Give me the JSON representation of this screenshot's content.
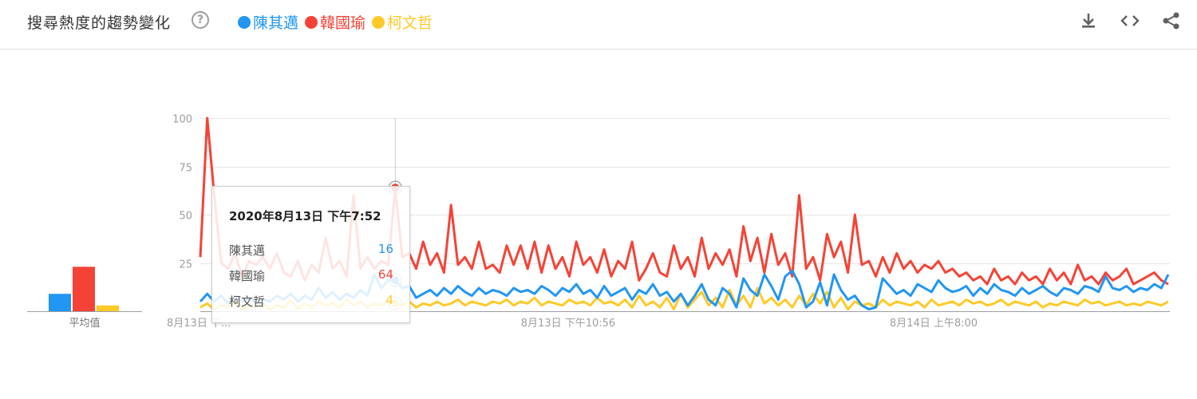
{
  "header": {
    "title": "搜尋熱度的趨勢變化",
    "help_glyph": "?",
    "tools": [
      "download-icon",
      "embed-icon",
      "share-icon"
    ]
  },
  "colors": {
    "blue": "#2196f3",
    "red": "#f44336",
    "yellow": "#ffca28"
  },
  "tooltip": {
    "date": "2020年8月13日 下午7:52",
    "rows": [
      {
        "label": "陳其邁",
        "value": "16",
        "color": "#2196f3"
      },
      {
        "label": "韓國瑜",
        "value": "64",
        "color": "#f44336"
      },
      {
        "label": "柯文哲",
        "value": "4",
        "color": "#ffca28"
      }
    ]
  },
  "chart_data": {
    "type": "line",
    "ylim": [
      0,
      100
    ],
    "yticks": [
      100,
      75,
      50,
      25
    ],
    "xtick_labels": [
      "8月13日 下...",
      "8月13日 下午10:56",
      "8月14日 上午8:00"
    ],
    "grid": true,
    "legend_position": "top",
    "hover_index": 28,
    "averages": {
      "label": "平均值",
      "values": [
        {
          "name": "陳其邁",
          "value": 9,
          "color": "#2196f3"
        },
        {
          "name": "韓國瑜",
          "value": 23,
          "color": "#f44336"
        },
        {
          "name": "柯文哲",
          "value": 3,
          "color": "#ffca28"
        }
      ]
    },
    "series": [
      {
        "name": "陳其邁",
        "color": "#2196f3",
        "values": [
          5,
          9,
          5,
          8,
          4,
          8,
          5,
          7,
          4,
          6,
          5,
          8,
          6,
          9,
          5,
          8,
          6,
          12,
          7,
          10,
          6,
          9,
          7,
          11,
          8,
          19,
          12,
          16,
          16,
          12,
          13,
          7,
          9,
          11,
          8,
          12,
          9,
          13,
          10,
          8,
          12,
          9,
          11,
          10,
          8,
          12,
          10,
          11,
          9,
          13,
          11,
          8,
          12,
          10,
          14,
          9,
          11,
          7,
          13,
          8,
          10,
          12,
          6,
          11,
          9,
          14,
          8,
          10,
          5,
          9,
          3,
          8,
          14,
          6,
          3,
          12,
          9,
          2,
          17,
          11,
          8,
          19,
          13,
          6,
          18,
          21,
          14,
          2,
          5,
          15,
          3,
          19,
          11,
          6,
          8,
          3,
          1,
          2,
          17,
          13,
          9,
          11,
          8,
          14,
          12,
          10,
          16,
          12,
          10,
          11,
          13,
          8,
          12,
          9,
          14,
          11,
          10,
          8,
          12,
          9,
          11,
          13,
          10,
          8,
          12,
          11,
          9,
          13,
          12,
          10,
          18,
          12,
          11,
          13,
          10,
          12,
          11,
          14,
          12,
          19
        ]
      },
      {
        "name": "韓國瑜",
        "color": "#f44336",
        "values": [
          28,
          100,
          60,
          25,
          22,
          30,
          18,
          26,
          24,
          28,
          22,
          30,
          20,
          18,
          26,
          16,
          24,
          20,
          38,
          22,
          26,
          18,
          60,
          22,
          28,
          22,
          26,
          24,
          64,
          28,
          30,
          22,
          36,
          24,
          30,
          20,
          55,
          24,
          28,
          22,
          36,
          22,
          24,
          20,
          34,
          24,
          34,
          22,
          36,
          20,
          34,
          22,
          28,
          18,
          36,
          24,
          28,
          20,
          32,
          18,
          26,
          22,
          36,
          16,
          22,
          30,
          20,
          18,
          34,
          22,
          28,
          18,
          38,
          22,
          30,
          24,
          32,
          18,
          44,
          26,
          38,
          20,
          40,
          24,
          30,
          18,
          60,
          22,
          28,
          16,
          40,
          28,
          36,
          20,
          50,
          24,
          26,
          18,
          28,
          20,
          30,
          22,
          26,
          20,
          24,
          22,
          26,
          20,
          22,
          18,
          20,
          16,
          18,
          14,
          22,
          16,
          18,
          14,
          20,
          16,
          18,
          14,
          22,
          16,
          20,
          14,
          24,
          16,
          18,
          14,
          20,
          16,
          18,
          22,
          14,
          16,
          18,
          20,
          16,
          14
        ]
      },
      {
        "name": "柯文哲",
        "color": "#ffca28",
        "values": [
          2,
          4,
          1,
          3,
          2,
          5,
          1,
          3,
          2,
          4,
          1,
          3,
          2,
          6,
          1,
          4,
          2,
          5,
          3,
          4,
          2,
          6,
          3,
          5,
          2,
          4,
          3,
          5,
          4,
          3,
          5,
          2,
          4,
          3,
          5,
          3,
          4,
          6,
          3,
          5,
          4,
          3,
          5,
          4,
          6,
          3,
          5,
          4,
          7,
          3,
          5,
          4,
          3,
          6,
          4,
          5,
          3,
          7,
          4,
          5,
          3,
          6,
          2,
          8,
          3,
          5,
          2,
          7,
          1,
          9,
          2,
          6,
          10,
          3,
          7,
          2,
          11,
          3,
          8,
          2,
          12,
          4,
          7,
          3,
          6,
          2,
          8,
          3,
          9,
          4,
          10,
          2,
          7,
          1,
          5,
          3,
          4,
          2,
          6,
          3,
          5,
          4,
          3,
          5,
          2,
          6,
          3,
          4,
          5,
          3,
          6,
          4,
          5,
          3,
          4,
          6,
          3,
          5,
          4,
          3,
          5,
          2,
          4,
          3,
          5,
          4,
          3,
          6,
          4,
          5,
          3,
          4,
          5,
          3,
          4,
          3,
          5,
          4,
          3,
          5
        ]
      }
    ]
  }
}
